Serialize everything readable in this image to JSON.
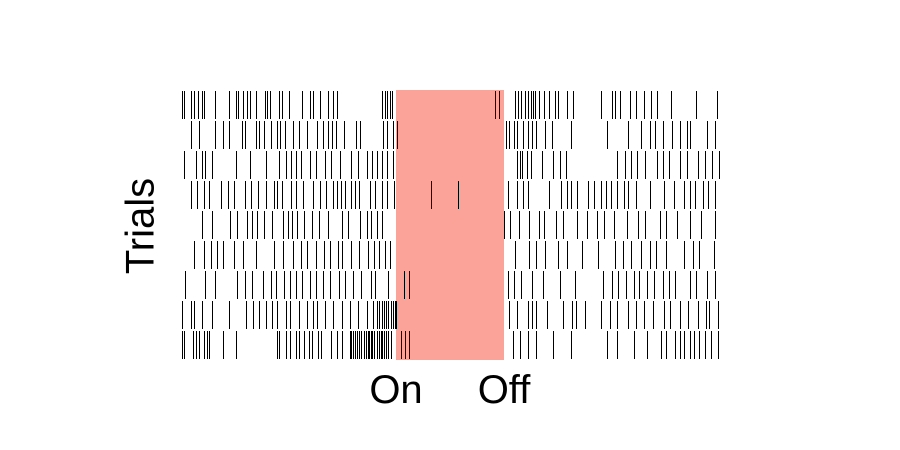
{
  "chart_data": {
    "type": "raster",
    "title": "",
    "ylabel": "Trials",
    "xlabel": "",
    "x_ticks": [
      "On",
      "Off"
    ],
    "stimulus_color": "#fba399",
    "spike_color": "#000000",
    "xlim": [
      -2,
      3
    ],
    "stimulus_window": [
      0,
      1
    ],
    "trials": [
      {
        "spikes": [
          -1.98,
          -1.96,
          -1.9,
          -1.87,
          -1.83,
          -1.8,
          -1.78,
          -1.68,
          -1.55,
          -1.48,
          -1.46,
          -1.42,
          -1.38,
          -1.35,
          -1.3,
          -1.21,
          -1.19,
          -1.17,
          -1.08,
          -1.06,
          -0.99,
          -0.87,
          -0.8,
          -0.77,
          -0.7,
          -0.63,
          -0.58,
          -0.55,
          -0.13,
          -0.1,
          -0.08,
          -0.06,
          -0.04,
          0.92,
          0.95,
          1.1,
          1.13,
          1.16,
          1.19,
          1.22,
          1.25,
          1.27,
          1.29,
          1.32,
          1.37,
          1.42,
          1.47,
          1.5,
          1.58,
          1.64,
          1.9,
          2.0,
          2.03,
          2.07,
          2.17,
          2.22,
          2.3,
          2.36,
          2.42,
          2.55,
          2.78,
          2.97
        ]
      },
      {
        "spikes": [
          -1.9,
          -1.82,
          -1.68,
          -1.6,
          -1.55,
          -1.43,
          -1.4,
          -1.3,
          -1.27,
          -1.22,
          -1.16,
          -1.1,
          -1.07,
          -1.03,
          -0.95,
          -0.9,
          -0.82,
          -0.73,
          -0.68,
          -0.63,
          -0.59,
          -0.56,
          -0.48,
          -0.37,
          -0.33,
          -0.12,
          -0.08,
          -0.03,
          0.01,
          1.02,
          1.05,
          1.09,
          1.12,
          1.18,
          1.22,
          1.26,
          1.3,
          1.38,
          1.44,
          1.62,
          1.95,
          2.15,
          2.27,
          2.35,
          2.4,
          2.47,
          2.56,
          2.63,
          2.69,
          2.72,
          2.88,
          2.95
        ]
      },
      {
        "spikes": [
          -1.96,
          -1.85,
          -1.8,
          -1.77,
          -1.7,
          -1.48,
          -1.35,
          -1.2,
          -1.08,
          -1.02,
          -0.97,
          -0.93,
          -0.88,
          -0.8,
          -0.74,
          -0.66,
          -0.6,
          -0.52,
          -0.42,
          -0.35,
          -0.27,
          -0.22,
          -0.18,
          -0.13,
          -0.08,
          -0.03,
          1.12,
          1.15,
          1.17,
          1.21,
          1.25,
          1.35,
          1.45,
          1.52,
          1.57,
          2.05,
          2.12,
          2.18,
          2.23,
          2.31,
          2.42,
          2.47,
          2.53,
          2.63,
          2.69,
          2.8,
          2.86,
          2.93,
          2.99
        ]
      },
      {
        "spikes": [
          -1.9,
          -1.84,
          -1.78,
          -1.73,
          -1.62,
          -1.56,
          -1.5,
          -1.4,
          -1.34,
          -1.28,
          -1.2,
          -1.13,
          -1.1,
          -1.06,
          -0.97,
          -0.93,
          -0.86,
          -0.77,
          -0.7,
          -0.65,
          -0.58,
          -0.55,
          -0.51,
          -0.47,
          -0.42,
          -0.38,
          -0.34,
          -0.24,
          -0.19,
          -0.13,
          -0.08,
          -0.02,
          0.32,
          0.57,
          1.04,
          1.12,
          1.18,
          1.22,
          1.42,
          1.53,
          1.58,
          1.62,
          1.68,
          1.78,
          1.83,
          1.9,
          1.94,
          1.99,
          2.05,
          2.11,
          2.15,
          2.22,
          2.35,
          2.48,
          2.57,
          2.67,
          2.72,
          2.77,
          2.84,
          2.89,
          2.95
        ]
      },
      {
        "spikes": [
          -1.8,
          -1.7,
          -1.54,
          -1.47,
          -1.38,
          -1.33,
          -1.29,
          -1.22,
          -1.15,
          -1.05,
          -1.0,
          -0.96,
          -0.92,
          -0.85,
          -0.78,
          -0.71,
          -0.63,
          -0.5,
          -0.44,
          -0.33,
          -0.27,
          -0.23,
          -0.18,
          -0.13,
          1.0,
          1.06,
          1.14,
          1.23,
          1.32,
          1.37,
          1.48,
          1.55,
          1.68,
          1.77,
          1.86,
          1.93,
          2.02,
          2.14,
          2.24,
          2.31,
          2.44,
          2.5,
          2.6,
          2.72,
          2.82,
          2.95
        ]
      },
      {
        "spikes": [
          -1.87,
          -1.78,
          -1.71,
          -1.66,
          -1.6,
          -1.5,
          -1.42,
          -1.3,
          -1.13,
          -1.05,
          -0.95,
          -0.88,
          -0.82,
          -0.74,
          -0.67,
          -0.61,
          -0.54,
          -0.5,
          -0.42,
          -0.34,
          -0.26,
          -0.2,
          -0.16,
          -0.1,
          -0.06,
          1.1,
          1.23,
          1.3,
          1.38,
          1.5,
          1.58,
          1.72,
          1.87,
          2.03,
          2.1,
          2.18,
          2.27,
          2.35,
          2.41,
          2.5,
          2.67,
          2.75,
          2.81,
          2.94
        ]
      },
      {
        "spikes": [
          -1.95,
          -1.77,
          -1.68,
          -1.47,
          -1.4,
          -1.33,
          -1.23,
          -1.16,
          -1.11,
          -1.04,
          -0.98,
          -0.93,
          -0.87,
          -0.8,
          -0.74,
          -0.68,
          -0.61,
          -0.53,
          -0.47,
          -0.4,
          -0.32,
          -0.23,
          -0.19,
          -0.07,
          0.07,
          0.12,
          1.04,
          1.09,
          1.16,
          1.26,
          1.36,
          1.52,
          1.66,
          1.92,
          2.0,
          2.06,
          2.13,
          2.2,
          2.25,
          2.32,
          2.39,
          2.47,
          2.53,
          2.58,
          2.72,
          2.78,
          2.88,
          2.95
        ]
      },
      {
        "spikes": [
          -1.98,
          -1.9,
          -1.87,
          -1.8,
          -1.7,
          -1.55,
          -1.39,
          -1.32,
          -1.27,
          -1.2,
          -1.15,
          -1.1,
          -1.02,
          -0.98,
          -0.9,
          -0.82,
          -0.77,
          -0.73,
          -0.66,
          -0.58,
          -0.5,
          -0.43,
          -0.35,
          -0.27,
          -0.21,
          -0.18,
          -0.16,
          -0.13,
          -0.11,
          -0.09,
          -0.07,
          -0.05,
          -0.03,
          -0.01,
          0.0,
          1.05,
          1.12,
          1.22,
          1.26,
          1.3,
          1.4,
          1.55,
          1.63,
          1.67,
          1.75,
          1.9,
          1.98,
          2.05,
          2.15,
          2.22,
          2.3,
          2.38,
          2.48,
          2.54,
          2.63,
          2.7,
          2.8,
          2.87,
          2.9,
          2.98
        ]
      },
      {
        "spikes": [
          -1.98,
          -1.96,
          -1.88,
          -1.85,
          -1.82,
          -1.78,
          -1.75,
          -1.73,
          -1.6,
          -1.48,
          -1.1,
          -1.08,
          -1.02,
          -0.98,
          -0.93,
          -0.9,
          -0.85,
          -0.81,
          -0.78,
          -0.72,
          -0.69,
          -0.6,
          -0.55,
          -0.5,
          -0.43,
          -0.42,
          -0.4,
          -0.38,
          -0.36,
          -0.34,
          -0.32,
          -0.3,
          -0.28,
          -0.26,
          -0.25,
          -0.23,
          -0.22,
          -0.2,
          -0.18,
          -0.16,
          -0.14,
          -0.13,
          -0.11,
          -0.09,
          -0.07,
          -0.05,
          0.05,
          0.08,
          0.12,
          1.08,
          1.15,
          1.22,
          1.3,
          1.45,
          1.62,
          1.95,
          2.05,
          2.2,
          2.32,
          2.45,
          2.5,
          2.58,
          2.63,
          2.67,
          2.72,
          2.76,
          2.81,
          2.86,
          2.92,
          2.98
        ]
      }
    ]
  }
}
